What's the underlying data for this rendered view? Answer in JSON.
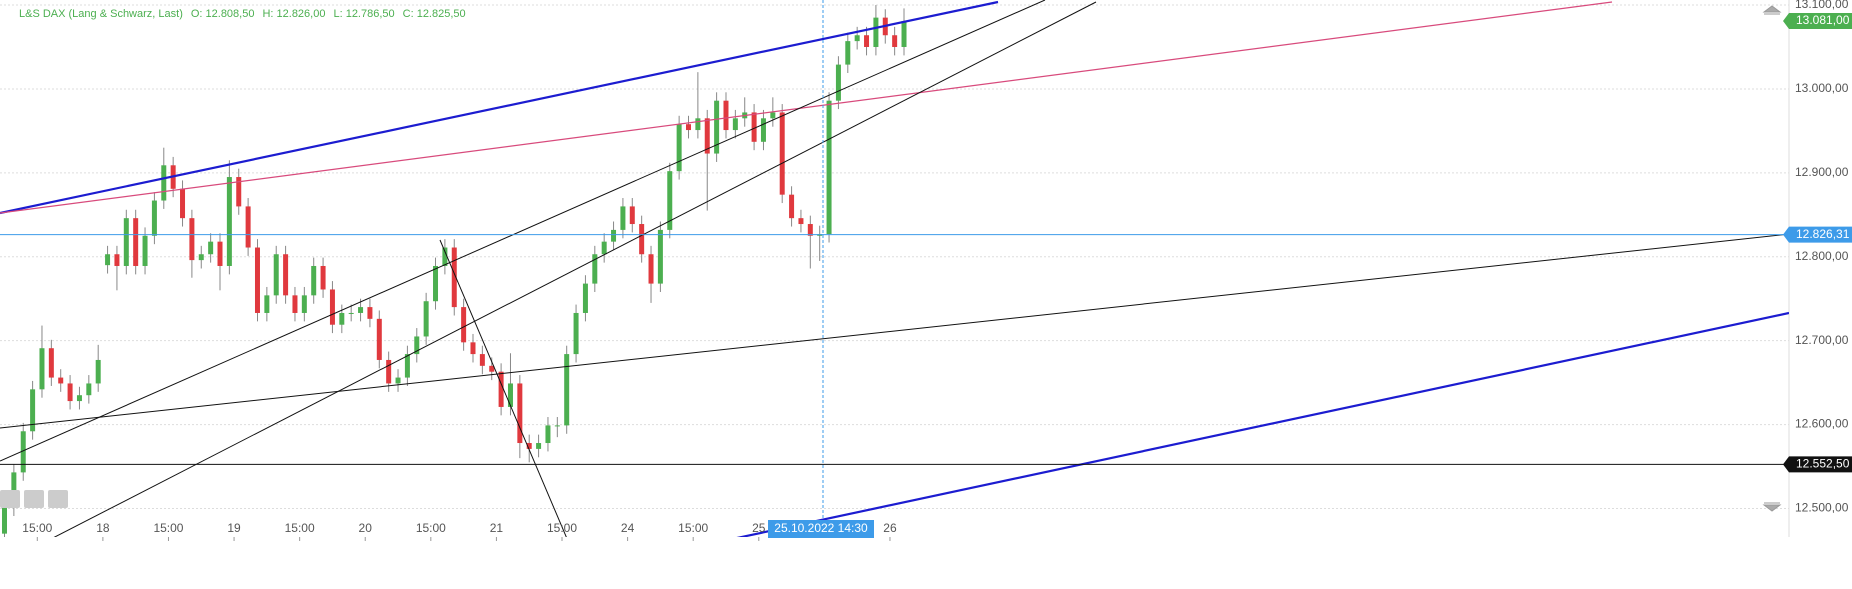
{
  "chart_data": {
    "type": "candlestick",
    "header": [
      "L&S DAX (Lang & Schwarz, Last)",
      "O: 12.808,50",
      "H: 12.826,00",
      "L: 12.786,50",
      "C: 12.825,50"
    ],
    "categories": [
      null,
      null,
      null,
      null,
      "15:00",
      null,
      null,
      null,
      null,
      null,
      null,
      "18",
      null,
      null,
      null,
      null,
      null,
      null,
      "15:00",
      null,
      null,
      null,
      null,
      null,
      null,
      "19",
      null,
      null,
      null,
      null,
      null,
      null,
      "15:00",
      null,
      null,
      null,
      null,
      null,
      null,
      "20",
      null,
      null,
      null,
      null,
      null,
      null,
      "15:00",
      null,
      null,
      null,
      null,
      null,
      null,
      "21",
      null,
      null,
      null,
      null,
      null,
      null,
      "15:00",
      null,
      null,
      null,
      null,
      null,
      null,
      "24",
      null,
      null,
      null,
      null,
      null,
      null,
      "15:00",
      null,
      null,
      null,
      null,
      null,
      null,
      "25",
      null,
      null,
      null,
      null,
      null,
      null,
      null,
      null,
      null,
      null,
      null,
      null,
      null,
      "26",
      null
    ],
    "open": [
      12470,
      12501,
      12543,
      12592,
      12642,
      12691,
      12656,
      12649,
      12628,
      12635,
      12649,
      12790,
      12803,
      12789,
      12846,
      12789,
      12825,
      12867,
      12909,
      12881,
      12846,
      12796,
      12803,
      12818,
      12789,
      12895,
      12860,
      12811,
      12733,
      12754,
      12803,
      12754,
      12733,
      12754,
      12789,
      12761,
      12719,
      12733,
      12733,
      12740,
      12726,
      12677,
      12649,
      12656,
      12684,
      12705,
      12747,
      12789,
      12811,
      12740,
      12698,
      12684,
      12670,
      12663,
      12621,
      12649,
      12578,
      12571,
      12578,
      12599,
      12599,
      12684,
      12733,
      12768,
      12803,
      12818,
      12832,
      12860,
      12839,
      12803,
      12768,
      12832,
      12902,
      12958,
      12951,
      12965,
      12923,
      12986,
      12951,
      12965,
      12972,
      12937,
      12965,
      12972,
      12874,
      12846,
      12839,
      12825,
      12827,
      12986,
      13029,
      13057,
      13064,
      13050,
      13085,
      13064,
      13050
    ],
    "high": [
      12511,
      12553,
      12602,
      12652,
      12718,
      12701,
      12666,
      12659,
      12645,
      12659,
      12695,
      12813,
      12813,
      12856,
      12856,
      12835,
      12877,
      12930,
      12919,
      12891,
      12856,
      12813,
      12828,
      12828,
      12915,
      12905,
      12870,
      12821,
      12764,
      12813,
      12813,
      12764,
      12764,
      12799,
      12799,
      12771,
      12743,
      12743,
      12750,
      12750,
      12736,
      12687,
      12666,
      12694,
      12715,
      12757,
      12799,
      12821,
      12821,
      12750,
      12708,
      12694,
      12680,
      12673,
      12685,
      12659,
      12588,
      12588,
      12609,
      12609,
      12694,
      12743,
      12778,
      12813,
      12828,
      12842,
      12870,
      12870,
      12849,
      12813,
      12842,
      12912,
      12968,
      12968,
      13020,
      12975,
      12996,
      12996,
      12975,
      12990,
      12982,
      12975,
      12990,
      12982,
      12884,
      12856,
      12849,
      12837,
      12996,
      13039,
      13067,
      13074,
      13074,
      13100,
      13095,
      13074,
      13096
    ],
    "low": [
      12460,
      12491,
      12533,
      12582,
      12632,
      12646,
      12639,
      12618,
      12618,
      12625,
      12639,
      12780,
      12760,
      12779,
      12779,
      12779,
      12815,
      12857,
      12871,
      12836,
      12775,
      12786,
      12793,
      12760,
      12779,
      12850,
      12801,
      12723,
      12723,
      12744,
      12744,
      12723,
      12723,
      12744,
      12751,
      12709,
      12709,
      12723,
      12723,
      12716,
      12667,
      12639,
      12639,
      12646,
      12674,
      12695,
      12737,
      12779,
      12730,
      12688,
      12674,
      12660,
      12653,
      12611,
      12611,
      12560,
      12555,
      12561,
      12568,
      12585,
      12589,
      12674,
      12723,
      12758,
      12793,
      12808,
      12822,
      12829,
      12793,
      12745,
      12758,
      12822,
      12892,
      12941,
      12941,
      12855,
      12913,
      12941,
      12941,
      12955,
      12927,
      12927,
      12955,
      12864,
      12836,
      12829,
      12786,
      12795,
      12817,
      12976,
      13019,
      13047,
      13040,
      13040,
      13054,
      13040,
      13040
    ],
    "close": [
      12501,
      12543,
      12592,
      12642,
      12691,
      12656,
      12649,
      12628,
      12635,
      12649,
      12677,
      12803,
      12789,
      12846,
      12789,
      12825,
      12867,
      12909,
      12881,
      12846,
      12796,
      12803,
      12818,
      12789,
      12895,
      12860,
      12811,
      12733,
      12754,
      12803,
      12754,
      12733,
      12754,
      12789,
      12761,
      12719,
      12733,
      12733,
      12740,
      12726,
      12677,
      12649,
      12656,
      12684,
      12705,
      12747,
      12789,
      12811,
      12740,
      12698,
      12684,
      12670,
      12663,
      12621,
      12649,
      12578,
      12571,
      12578,
      12599,
      12599,
      12684,
      12733,
      12768,
      12803,
      12818,
      12832,
      12860,
      12839,
      12803,
      12768,
      12832,
      12902,
      12958,
      12951,
      12965,
      12923,
      12986,
      12951,
      12965,
      12972,
      12937,
      12965,
      12972,
      12874,
      12846,
      12839,
      12825,
      12827,
      12986,
      13029,
      13057,
      13064,
      13050,
      13085,
      13064,
      13050,
      13081
    ],
    "up_color": "#4caf50",
    "down_color": "#e0393e",
    "ylim": [
      12466,
      13106
    ],
    "yticks": [
      {
        "value": 12500,
        "label": "12.500,00"
      },
      {
        "value": 12600,
        "label": "12.600,00"
      },
      {
        "value": 12700,
        "label": "12.700,00"
      },
      {
        "value": 12800,
        "label": "12.800,00"
      },
      {
        "value": 12900,
        "label": "12.900,00"
      },
      {
        "value": 13000,
        "label": "13.000,00"
      },
      {
        "value": 13100,
        "label": "13.100,00"
      }
    ],
    "grid": true,
    "price_labels": [
      {
        "value": 13081,
        "label": "13.081,00",
        "color": "#4caf50"
      },
      {
        "value": 12826.31,
        "label": "12.826,31",
        "color": "#3d9be9",
        "line_color": "#3d9be9"
      },
      {
        "value": 12552.5,
        "label": "12.552,50",
        "color": "#111111",
        "line_color": "#111111"
      }
    ],
    "crosshair_time": "25.10.2022 14:30"
  }
}
